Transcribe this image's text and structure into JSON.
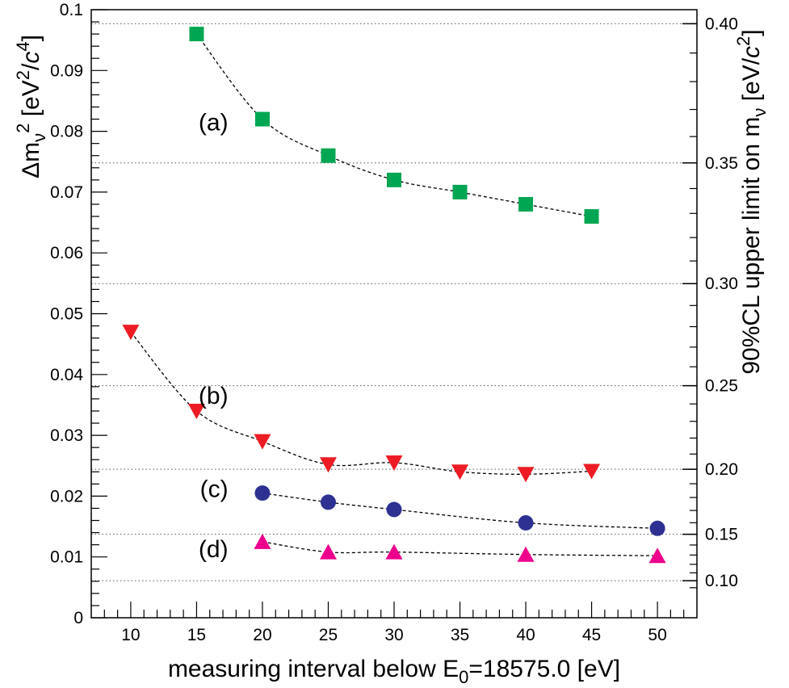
{
  "chart_data": {
    "type": "scatter",
    "xlabel": {
      "pre": "measuring interval below E",
      "sub": "0",
      "post": "=18575.0 [eV]"
    },
    "ylabel": {
      "delta": "Δm",
      "nu": "ν",
      "sup2": "2",
      "bracket_open": " [eV",
      "sup_a": "2",
      "slash": "/",
      "c": "c",
      "sup_b": "4",
      "bracket_close": "]"
    },
    "y2label": {
      "pre": "90%CL upper limit on m",
      "nu": "ν",
      "bracket_open": " [eV/",
      "c": "c",
      "sup": "2",
      "bracket_close": "]"
    },
    "xlim": [
      7,
      53
    ],
    "ylim": [
      0,
      0.1
    ],
    "x_ticks": [
      10,
      15,
      20,
      25,
      30,
      35,
      40,
      45,
      50
    ],
    "x_tick_labels": [
      "10",
      "15",
      "20",
      "25",
      "30",
      "35",
      "40",
      "45",
      "50"
    ],
    "y_ticks": [
      0,
      0.01,
      0.02,
      0.03,
      0.04,
      0.05,
      0.06,
      0.07,
      0.08,
      0.09,
      0.1
    ],
    "y_tick_labels": [
      "0",
      "0.01",
      "0.02",
      "0.03",
      "0.04",
      "0.05",
      "0.06",
      "0.07",
      "0.08",
      "0.09",
      "0.1"
    ],
    "y2_ticks": [
      0.1,
      0.15,
      0.2,
      0.25,
      0.3,
      0.35,
      0.4
    ],
    "y2_tick_labels": [
      "0.10",
      "0.15",
      "0.20",
      "0.25",
      "0.30",
      "0.35",
      "0.40"
    ],
    "y2_gridlines": true,
    "series": [
      {
        "annotation": "(a)",
        "marker": "square",
        "color": "#00a651",
        "x": [
          15,
          20,
          25,
          30,
          35,
          40,
          45
        ],
        "y": [
          0.096,
          0.082,
          0.076,
          0.072,
          0.07,
          0.068,
          0.066
        ]
      },
      {
        "annotation": "(b)",
        "marker": "triangle-down",
        "color": "#ed1c24",
        "x": [
          10,
          15,
          20,
          25,
          30,
          35,
          40,
          45
        ],
        "y": [
          0.047,
          0.034,
          0.029,
          0.0252,
          0.0255,
          0.024,
          0.0236,
          0.0241
        ]
      },
      {
        "annotation": "(c)",
        "marker": "circle",
        "color": "#2e3192",
        "x": [
          20,
          25,
          30,
          40,
          50
        ],
        "y": [
          0.0205,
          0.019,
          0.0178,
          0.0156,
          0.0147
        ]
      },
      {
        "annotation": "(d)",
        "marker": "triangle-up",
        "color": "#ec008c",
        "x": [
          20,
          25,
          30,
          40,
          50
        ],
        "y": [
          0.0125,
          0.0108,
          0.0108,
          0.0104,
          0.0102
        ]
      }
    ],
    "annotations": [
      "(a)",
      "(b)",
      "(c)",
      "(d)"
    ]
  }
}
